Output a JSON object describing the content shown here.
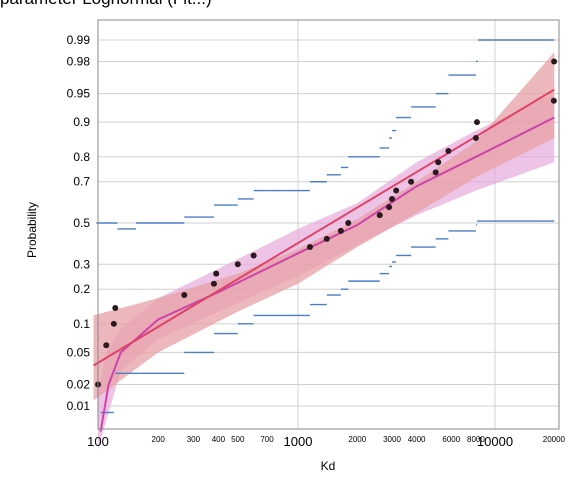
{
  "title_fragment": "parameter Lognormal (Fit...)",
  "chart_data": {
    "type": "scatter",
    "title": "parameter Lognormal (Fit...)",
    "xlabel": "Kd",
    "ylabel": "Probability",
    "x_scale": "log",
    "y_scale": "normal-probability",
    "xlim": [
      95,
      20000
    ],
    "ylim": [
      0.005,
      0.995
    ],
    "grid": true,
    "x_ticks_major": [
      {
        "value": 100,
        "label": "100"
      },
      {
        "value": 1000,
        "label": "1000"
      },
      {
        "value": 10000,
        "label": "10000"
      },
      {
        "value": 20000,
        "label": "20000"
      }
    ],
    "x_ticks_minor": [
      {
        "value": 200,
        "label": "200"
      },
      {
        "value": 300,
        "label": "300"
      },
      {
        "value": 400,
        "label": "400"
      },
      {
        "value": 500,
        "label": "500"
      },
      {
        "value": 700,
        "label": "700"
      },
      {
        "value": 2000,
        "label": "2000"
      },
      {
        "value": 3000,
        "label": "3000"
      },
      {
        "value": 4000,
        "label": "4000"
      },
      {
        "value": 6000,
        "label": "6000"
      },
      {
        "value": 8000,
        "label": "8000"
      }
    ],
    "y_ticks": [
      {
        "value": 0.01,
        "label": "0.01"
      },
      {
        "value": 0.02,
        "label": "0.02"
      },
      {
        "value": 0.05,
        "label": "0.05"
      },
      {
        "value": 0.1,
        "label": "0.1"
      },
      {
        "value": 0.2,
        "label": "0.2"
      },
      {
        "value": 0.3,
        "label": "0.3"
      },
      {
        "value": 0.5,
        "label": "0.5"
      },
      {
        "value": 0.7,
        "label": "0.7"
      },
      {
        "value": 0.8,
        "label": "0.8"
      },
      {
        "value": 0.9,
        "label": "0.9"
      },
      {
        "value": 0.95,
        "label": "0.95"
      },
      {
        "value": 0.98,
        "label": "0.98"
      },
      {
        "value": 0.99,
        "label": "0.99"
      }
    ],
    "points": [
      {
        "x": 100,
        "y": 0.02
      },
      {
        "x": 110,
        "y": 0.06
      },
      {
        "x": 120,
        "y": 0.1
      },
      {
        "x": 122,
        "y": 0.14
      },
      {
        "x": 270,
        "y": 0.18
      },
      {
        "x": 380,
        "y": 0.22
      },
      {
        "x": 390,
        "y": 0.26
      },
      {
        "x": 500,
        "y": 0.3
      },
      {
        "x": 600,
        "y": 0.34
      },
      {
        "x": 1150,
        "y": 0.38
      },
      {
        "x": 1400,
        "y": 0.42
      },
      {
        "x": 1650,
        "y": 0.46
      },
      {
        "x": 1800,
        "y": 0.5
      },
      {
        "x": 2600,
        "y": 0.54
      },
      {
        "x": 2900,
        "y": 0.58
      },
      {
        "x": 3000,
        "y": 0.62
      },
      {
        "x": 3150,
        "y": 0.66
      },
      {
        "x": 3750,
        "y": 0.7
      },
      {
        "x": 5000,
        "y": 0.74
      },
      {
        "x": 5150,
        "y": 0.78
      },
      {
        "x": 5800,
        "y": 0.82
      },
      {
        "x": 8000,
        "y": 0.86
      },
      {
        "x": 8100,
        "y": 0.9
      },
      {
        "x": 19900,
        "y": 0.94
      },
      {
        "x": 19950,
        "y": 0.98
      }
    ],
    "lognormal_fit": {
      "color": "#dd4466",
      "line": [
        [
          95,
          0.035
        ],
        [
          20000,
          0.955
        ]
      ],
      "band_color": "#e7a0a4"
    },
    "alt_fit": {
      "color": "#cc44aa",
      "line": [
        [
          103,
          0.004
        ],
        [
          113,
          0.02
        ],
        [
          130,
          0.05
        ],
        [
          200,
          0.11
        ],
        [
          400,
          0.19
        ],
        [
          1000,
          0.35
        ],
        [
          2000,
          0.49
        ],
        [
          4000,
          0.68
        ],
        [
          8000,
          0.8
        ],
        [
          20000,
          0.91
        ]
      ],
      "band_color": "#e6a9dc"
    },
    "outer_bounds_color": "#4a7fc6",
    "point_color": "#2a1a1f",
    "grid_color": "#d0d0d0"
  }
}
